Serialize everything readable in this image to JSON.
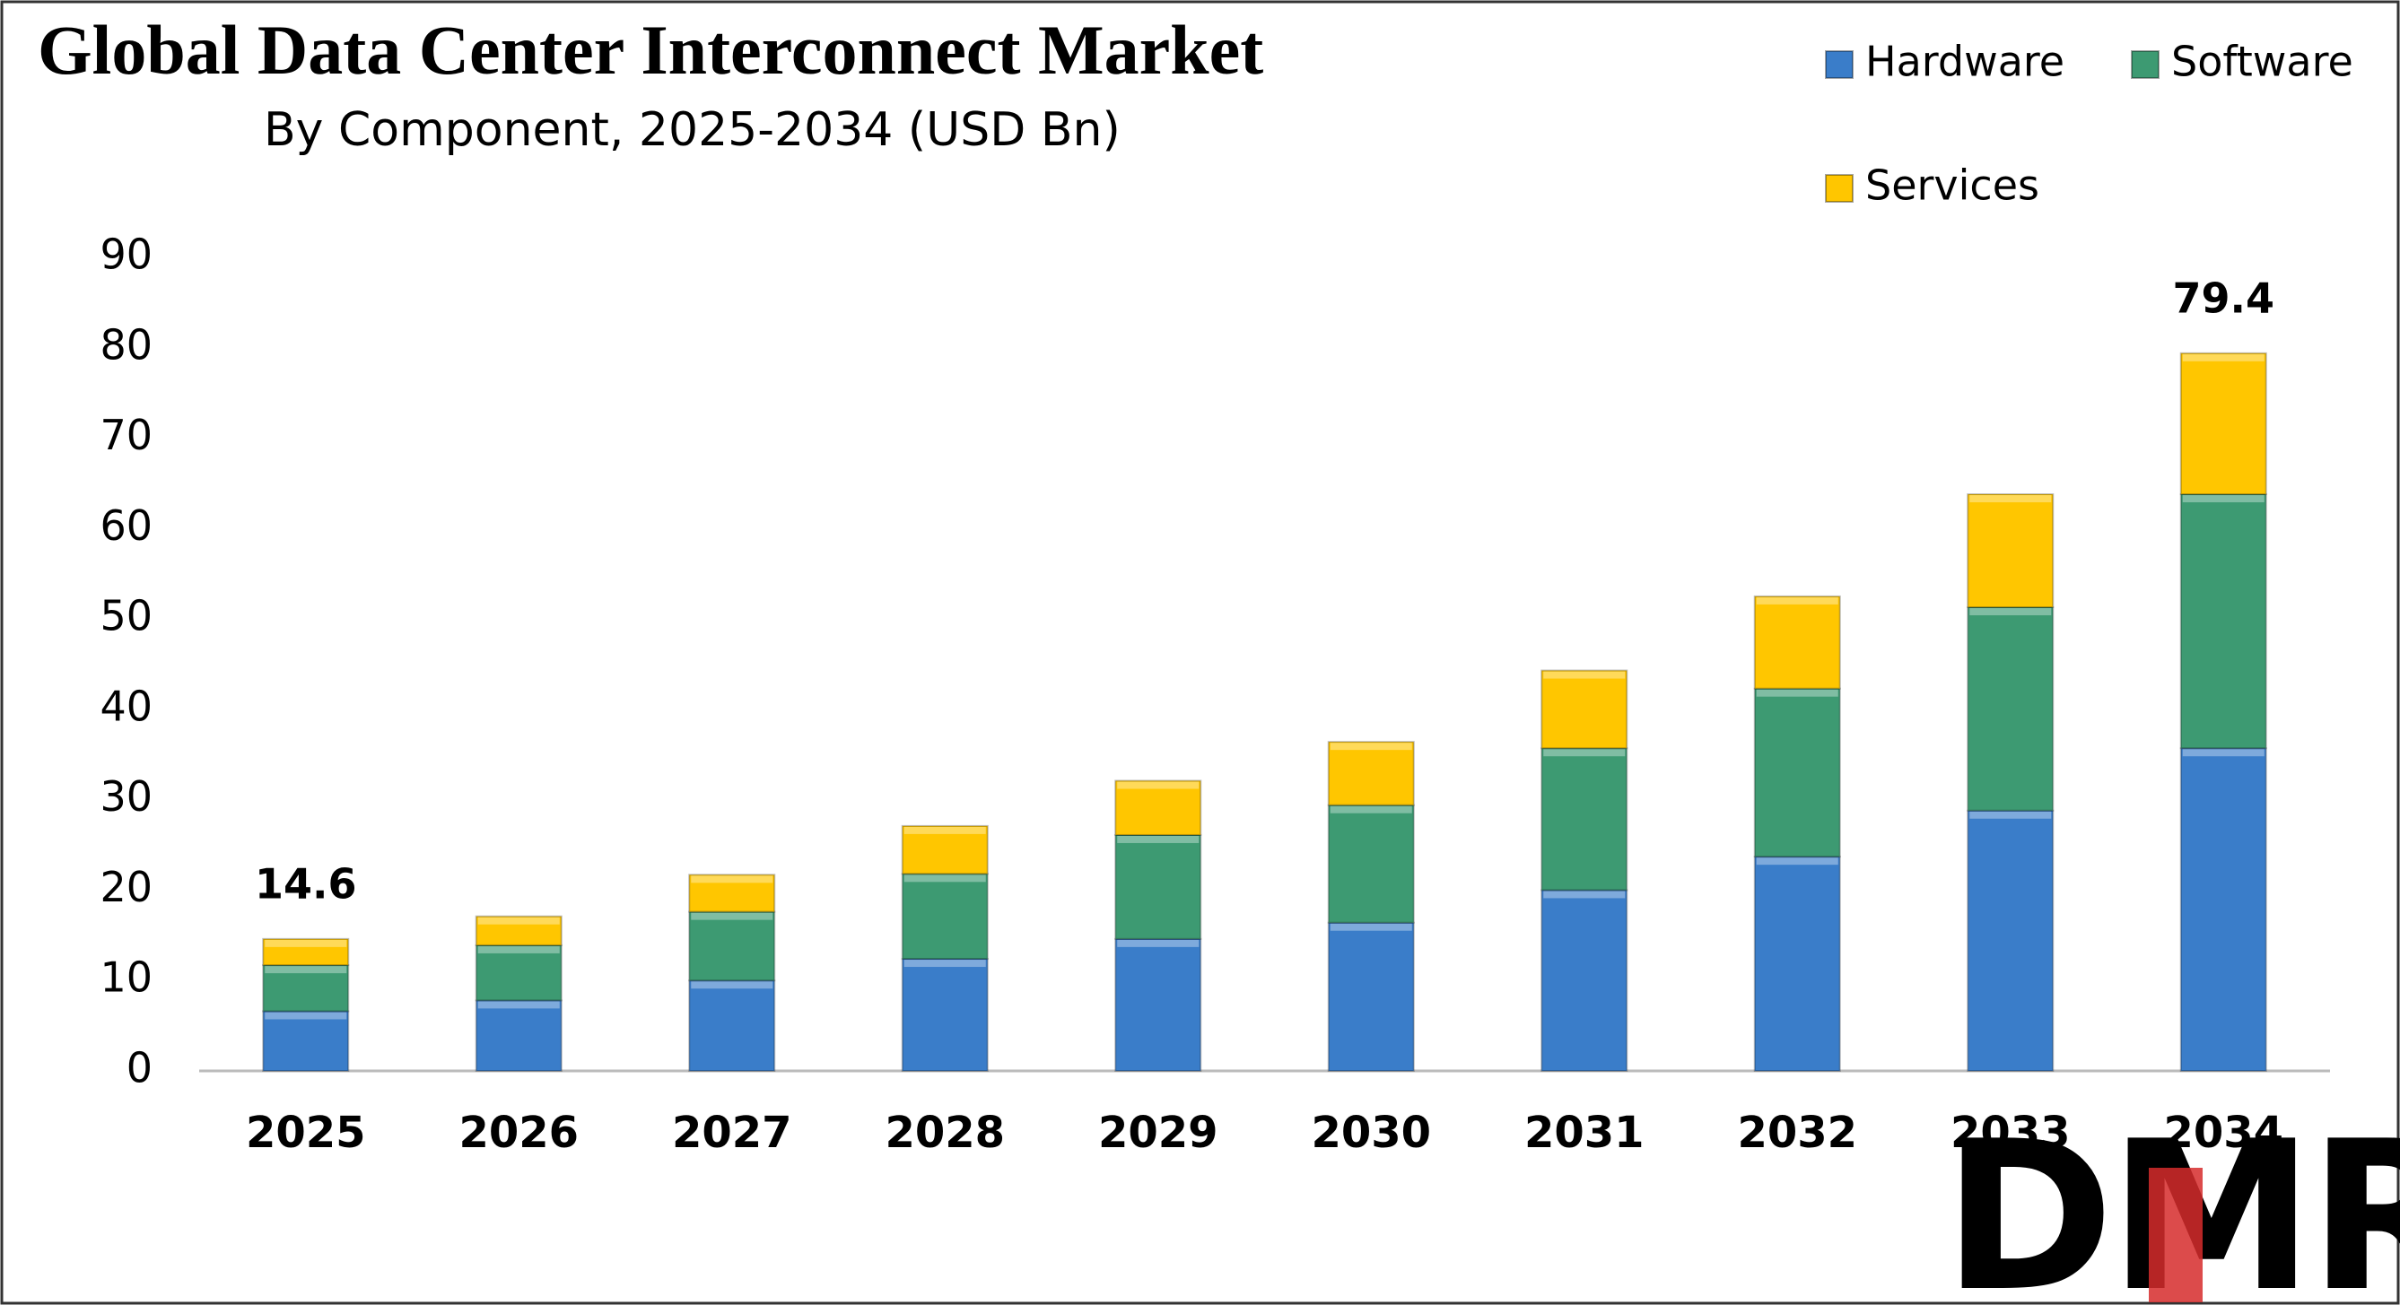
{
  "chart_data": {
    "type": "stacked_bar",
    "title": "Global Data Center Interconnect Market",
    "subtitle": "By Component, 2025-2034 (USD Bn)",
    "categories": [
      "2025",
      "2026",
      "2027",
      "2028",
      "2029",
      "2030",
      "2031",
      "2032",
      "2033",
      "2034"
    ],
    "series": [
      {
        "name": "Hardware",
        "color": "#3a7dc9",
        "values": [
          6.6,
          7.8,
          10.0,
          12.4,
          14.6,
          16.4,
          20.0,
          23.7,
          28.8,
          35.7
        ]
      },
      {
        "name": "Software",
        "color": "#3d9a72",
        "values": [
          5.1,
          6.1,
          7.6,
          9.4,
          11.5,
          13.0,
          15.7,
          18.6,
          22.5,
          28.1
        ]
      },
      {
        "name": "Services",
        "color": "#ffc600",
        "values": [
          2.9,
          3.2,
          4.1,
          5.3,
          6.0,
          7.0,
          8.6,
          10.2,
          12.5,
          15.6
        ]
      }
    ],
    "annotations": [
      {
        "category": "2025",
        "value": 14.6
      },
      {
        "category": "2034",
        "value": 79.4
      }
    ],
    "ylim": [
      0,
      90
    ],
    "yticks": [
      0,
      10,
      20,
      30,
      40,
      50,
      60,
      70,
      80,
      90
    ],
    "grid": false,
    "legend": "top-right",
    "logo": "DMR"
  }
}
